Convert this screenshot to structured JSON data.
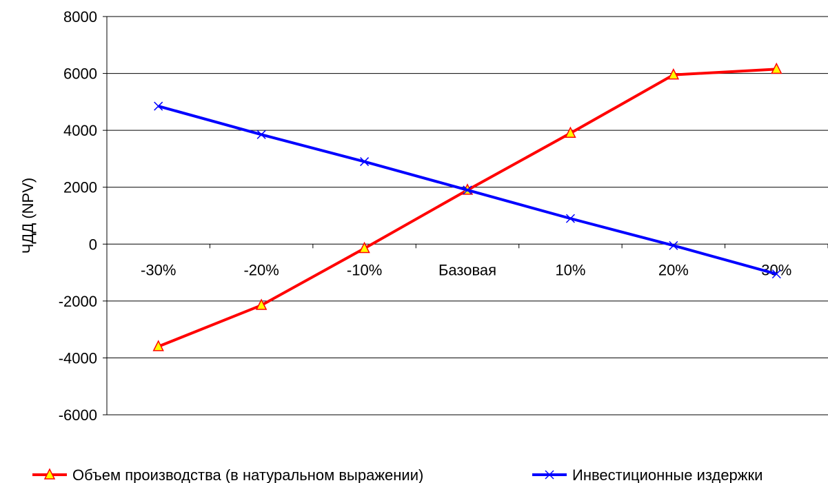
{
  "chart_data": {
    "type": "line",
    "title": "",
    "xlabel": "",
    "ylabel": "ЧДД (NPV)",
    "categories": [
      "-30%",
      "-20%",
      "-10%",
      "Базовая",
      "10%",
      "20%",
      "30%"
    ],
    "ylim": [
      -6000,
      8000
    ],
    "yticks": [
      -6000,
      -4000,
      -2000,
      0,
      2000,
      4000,
      6000,
      8000
    ],
    "grid": "horizontal",
    "legend_position": "bottom",
    "series": [
      {
        "name": "Объем производства (в натуральном выражении)",
        "color": "#ff0000",
        "marker": "triangle",
        "marker_fill": "#ffff00",
        "values": [
          -3600,
          -2150,
          -150,
          1900,
          3900,
          5950,
          6150
        ]
      },
      {
        "name": "Инвестиционные издержки",
        "color": "#0000ff",
        "marker": "x",
        "values": [
          4850,
          3850,
          2900,
          1900,
          900,
          -50,
          -1050
        ]
      }
    ]
  }
}
